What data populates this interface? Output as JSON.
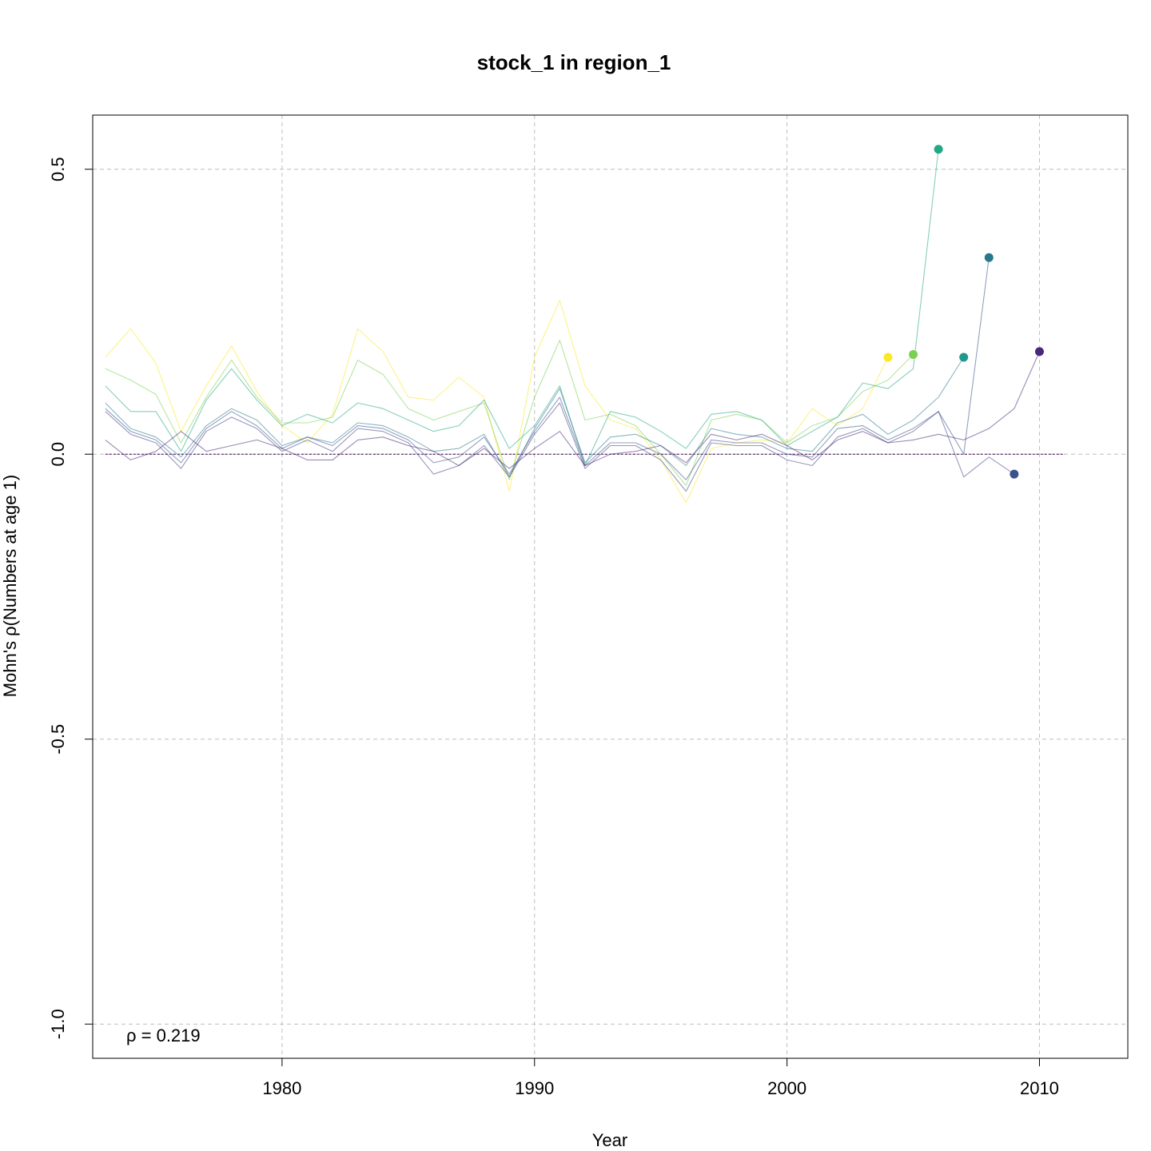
{
  "chart_data": {
    "type": "line",
    "title": "stock_1 in region_1",
    "xlabel": "Year",
    "ylabel": "Mohn's ρ(Numbers at age 1)",
    "xlim": [
      1972.5,
      2013.5
    ],
    "ylim": [
      -1.06,
      0.595
    ],
    "x_ticks": [
      1980,
      1990,
      2000,
      2010
    ],
    "y_ticks": [
      -1.0,
      -0.5,
      0.0,
      0.5
    ],
    "y_tick_labels": [
      "-1.0",
      "-0.5",
      "0.0",
      "0.5"
    ],
    "grid": true,
    "reference_line": {
      "y": 0,
      "color": "#440154",
      "range": [
        1973,
        2011
      ]
    },
    "annotation": "ρ = 0.219",
    "series": [
      {
        "color": "#FDE725",
        "x": [
          1973,
          1974,
          1975,
          1976,
          1977,
          1978,
          1979,
          1980,
          1981,
          1982,
          1983,
          1984,
          1985,
          1986,
          1987,
          1988,
          1989,
          1990,
          1991,
          1992,
          1993,
          1994,
          1995,
          1996,
          1997,
          1998,
          1999,
          2000,
          2001,
          2002,
          2003,
          2004
        ],
        "y": [
          0.17,
          0.22,
          0.16,
          0.04,
          0.12,
          0.19,
          0.11,
          0.05,
          0.02,
          0.07,
          0.22,
          0.18,
          0.1,
          0.095,
          0.135,
          0.1,
          -0.065,
          0.17,
          0.27,
          0.12,
          0.06,
          0.045,
          -0.01,
          -0.085,
          0.01,
          0.02,
          0.025,
          0.02,
          0.08,
          0.05,
          0.08,
          0.17
        ]
      },
      {
        "color": "#7AD151",
        "x": [
          1973,
          1974,
          1975,
          1976,
          1977,
          1978,
          1979,
          1980,
          1981,
          1982,
          1983,
          1984,
          1985,
          1986,
          1987,
          1988,
          1989,
          1990,
          1991,
          1992,
          1993,
          1994,
          1995,
          1996,
          1997,
          1998,
          1999,
          2000,
          2001,
          2002,
          2003,
          2004,
          2005
        ],
        "y": [
          0.15,
          0.13,
          0.105,
          0.02,
          0.1,
          0.165,
          0.1,
          0.055,
          0.055,
          0.065,
          0.165,
          0.14,
          0.08,
          0.06,
          0.075,
          0.09,
          -0.045,
          0.1,
          0.2,
          0.06,
          0.07,
          0.05,
          0.0,
          -0.055,
          0.06,
          0.07,
          0.06,
          0.02,
          0.05,
          0.065,
          0.11,
          0.13,
          0.175
        ]
      },
      {
        "color": "#22A884",
        "x": [
          1973,
          1974,
          1975,
          1976,
          1977,
          1978,
          1979,
          1980,
          1981,
          1982,
          1983,
          1984,
          1985,
          1986,
          1987,
          1988,
          1989,
          1990,
          1991,
          1992,
          1993,
          1994,
          1995,
          1996,
          1997,
          1998,
          1999,
          2000,
          2001,
          2002,
          2003,
          2004,
          2005,
          2006
        ],
        "y": [
          0.12,
          0.075,
          0.075,
          0.005,
          0.095,
          0.15,
          0.095,
          0.05,
          0.07,
          0.055,
          0.09,
          0.08,
          0.06,
          0.04,
          0.05,
          0.095,
          0.01,
          0.05,
          0.12,
          -0.02,
          0.075,
          0.065,
          0.04,
          0.01,
          0.07,
          0.075,
          0.06,
          0.015,
          0.04,
          0.065,
          0.125,
          0.115,
          0.15,
          0.535
        ]
      },
      {
        "color": "#2A788E",
        "x": [
          1973,
          1974,
          1975,
          1976,
          1977,
          1978,
          1979,
          1980,
          1981,
          1982,
          1983,
          1984,
          1985,
          1986,
          1987,
          1988,
          1989,
          1990,
          1991,
          1992,
          1993,
          1994,
          1995,
          1996,
          1997,
          1998,
          1999,
          2000,
          2001,
          2002,
          2003,
          2004,
          2005,
          2006,
          2007
        ],
        "y": [
          0.09,
          0.045,
          0.03,
          -0.005,
          0.05,
          0.08,
          0.06,
          0.015,
          0.03,
          0.02,
          0.055,
          0.05,
          0.03,
          0.005,
          0.01,
          0.035,
          -0.04,
          0.045,
          0.115,
          -0.015,
          0.03,
          0.035,
          0.015,
          -0.02,
          0.045,
          0.035,
          0.03,
          0.01,
          0.005,
          0.055,
          0.07,
          0.035,
          0.06,
          0.1,
          0.17
        ]
      },
      {
        "color": "#3B528B",
        "x": [
          1973,
          1974,
          1975,
          1976,
          1977,
          1978,
          1979,
          1980,
          1981,
          1982,
          1983,
          1984,
          1985,
          1986,
          1987,
          1988,
          1989,
          1990,
          1991,
          1992,
          1993,
          1994,
          1995,
          1996,
          1997,
          1998,
          1999,
          2000,
          2001,
          2002,
          2003,
          2004,
          2005,
          2006,
          2007,
          2008
        ],
        "y": [
          0.08,
          0.04,
          0.025,
          -0.015,
          0.045,
          0.075,
          0.05,
          0.01,
          0.03,
          0.015,
          0.05,
          0.045,
          0.025,
          -0.015,
          -0.005,
          0.03,
          -0.035,
          0.04,
          0.1,
          -0.02,
          0.02,
          0.02,
          0.0,
          -0.045,
          0.025,
          0.02,
          0.02,
          0.0,
          -0.005,
          0.045,
          0.05,
          0.025,
          0.045,
          0.075,
          0.0,
          0.345
        ]
      },
      {
        "color": "#414487",
        "x": [
          1973,
          1974,
          1975,
          1976,
          1977,
          1978,
          1979,
          1980,
          1981,
          1982,
          1983,
          1984,
          1985,
          1986,
          1987,
          1988,
          1989,
          1990,
          1991,
          1992,
          1993,
          1994,
          1995,
          1996,
          1997,
          1998,
          1999,
          2000,
          2001,
          2002,
          2003,
          2004,
          2005,
          2006,
          2007,
          2008,
          2009
        ],
        "y": [
          0.075,
          0.035,
          0.02,
          -0.025,
          0.04,
          0.065,
          0.045,
          0.005,
          0.025,
          0.005,
          0.045,
          0.04,
          0.02,
          -0.035,
          -0.02,
          0.015,
          -0.04,
          0.035,
          0.09,
          -0.025,
          0.015,
          0.015,
          -0.01,
          -0.065,
          0.02,
          0.015,
          0.015,
          -0.01,
          -0.02,
          0.03,
          0.045,
          0.02,
          0.04,
          0.075,
          -0.04,
          -0.005,
          -0.035
        ]
      },
      {
        "color": "#482878",
        "x": [
          1973,
          1974,
          1975,
          1976,
          1977,
          1978,
          1979,
          1980,
          1981,
          1982,
          1983,
          1984,
          1985,
          1986,
          1987,
          1988,
          1989,
          1990,
          1991,
          1992,
          1993,
          1994,
          1995,
          1996,
          1997,
          1998,
          1999,
          2000,
          2001,
          2002,
          2003,
          2004,
          2005,
          2006,
          2007,
          2008,
          2009,
          2010
        ],
        "y": [
          0.025,
          -0.01,
          0.005,
          0.04,
          0.005,
          0.015,
          0.025,
          0.01,
          -0.01,
          -0.01,
          0.025,
          0.03,
          0.015,
          0.005,
          -0.02,
          0.01,
          -0.025,
          0.01,
          0.04,
          -0.02,
          0.0,
          0.005,
          0.015,
          -0.015,
          0.035,
          0.025,
          0.035,
          0.015,
          -0.01,
          0.025,
          0.04,
          0.02,
          0.025,
          0.035,
          0.025,
          0.045,
          0.08,
          0.18
        ]
      }
    ],
    "terminal_points": [
      {
        "x": 2004,
        "y": 0.17,
        "color": "#FDE725"
      },
      {
        "x": 2005,
        "y": 0.175,
        "color": "#7AD151"
      },
      {
        "x": 2006,
        "y": 0.535,
        "color": "#22A884"
      },
      {
        "x": 2007,
        "y": 0.17,
        "color": "#1F9A8A"
      },
      {
        "x": 2008,
        "y": 0.345,
        "color": "#2A788E"
      },
      {
        "x": 2009,
        "y": -0.035,
        "color": "#3B528B"
      },
      {
        "x": 2010,
        "y": 0.18,
        "color": "#482878"
      }
    ]
  }
}
